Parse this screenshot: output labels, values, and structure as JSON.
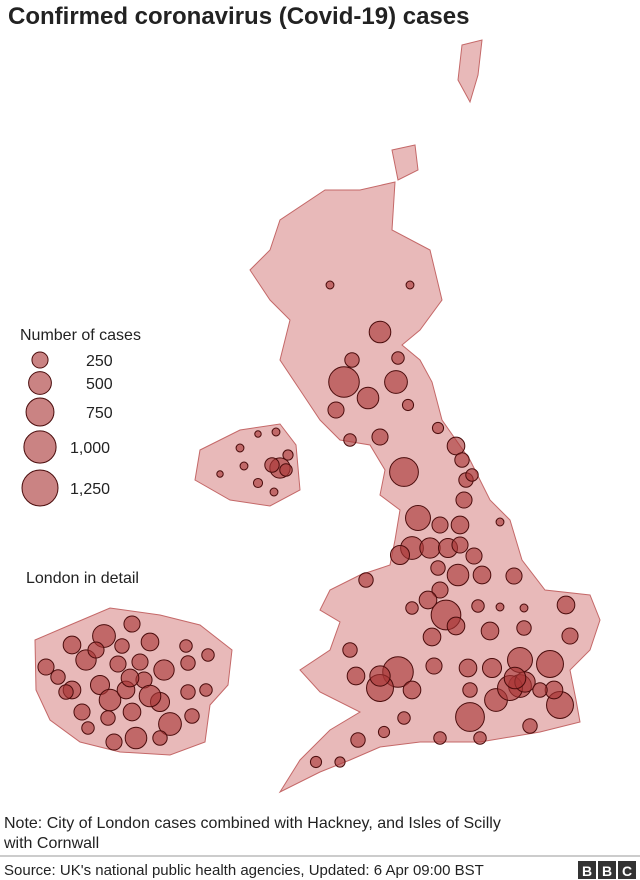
{
  "map": {
    "title": "Confirmed coronavirus (Covid-19) cases",
    "legend_title": "Number of cases",
    "legend": [
      250,
      500,
      750,
      {
        "value": 1000,
        "label": "1,000"
      },
      {
        "value": 1250,
        "label": "1,250"
      }
    ],
    "inset_title": "London in detail",
    "note": [
      "Note: City of London cases combined with Hackney, and Isles of Scilly",
      "with Cornwall"
    ],
    "source": "Source: UK's national public health agencies, Updated: 6 Apr 09:00 BST",
    "logo": [
      "B",
      "B",
      "C"
    ],
    "cases": [
      60,
      60,
      450,
      200,
      150,
      900,
      500,
      450,
      250,
      120,
      150,
      250,
      120,
      300,
      200,
      800,
      200,
      150,
      250,
      600,
      250,
      300,
      60,
      500,
      350,
      400,
      350,
      250,
      250,
      450,
      200,
      300,
      200,
      250,
      250,
      300,
      850,
      300,
      300,
      150,
      150,
      60,
      60,
      300,
      300,
      200,
      250,
      250,
      900,
      300,
      350,
      600,
      700,
      300,
      700,
      400,
      300,
      200,
      500,
      700,
      500,
      800,
      200,
      150,
      150,
      150,
      200,
      100,
      120,
      120,
      200,
      300,
      600,
      400,
      450,
      200,
      40,
      60,
      60,
      400,
      200,
      150,
      80,
      40,
      60,
      60,
      100
    ],
    "london_cases": [
      250,
      300,
      500,
      250,
      300,
      150,
      150,
      400,
      250,
      250,
      400,
      200,
      200,
      300,
      350,
      450,
      300,
      250,
      350,
      200,
      150,
      250,
      200,
      300,
      450,
      500,
      200,
      200,
      250,
      450,
      150,
      200,
      250,
      200,
      300
    ]
  }
}
